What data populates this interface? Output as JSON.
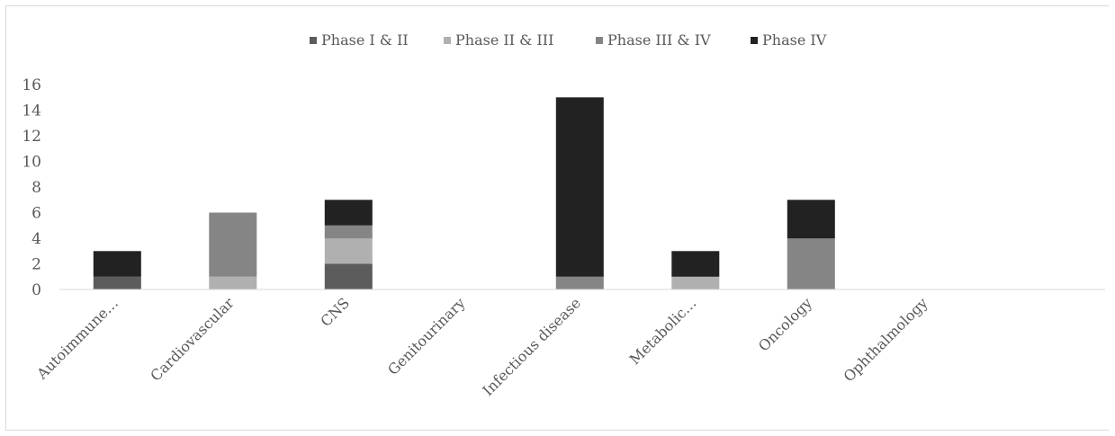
{
  "chart_data": {
    "type": "bar",
    "stacked": true,
    "categories": [
      "Autoimmune…",
      "Cardiovascular",
      "CNS",
      "Genitourinary",
      "Infectious disease",
      "Metabolic…",
      "Oncology",
      "Ophthalmology"
    ],
    "series": [
      {
        "name": "Phase I & II",
        "color": "#5c5c5c",
        "values": [
          1,
          0,
          2,
          0,
          0,
          0,
          0,
          0
        ]
      },
      {
        "name": "Phase II & III",
        "color": "#b0b0b0",
        "values": [
          0,
          1,
          2,
          0,
          0,
          1,
          0,
          0
        ]
      },
      {
        "name": "Phase III & IV",
        "color": "#858585",
        "values": [
          0,
          5,
          1,
          0,
          1,
          0,
          4,
          0
        ]
      },
      {
        "name": "Phase IV",
        "color": "#222222",
        "values": [
          2,
          0,
          2,
          0,
          14,
          2,
          3,
          0
        ]
      }
    ],
    "ylim": [
      0,
      16
    ],
    "yticks": [
      "0",
      "2",
      "4",
      "6",
      "8",
      "10",
      "12",
      "14",
      "16"
    ],
    "legend_position": "top",
    "grid": false
  }
}
